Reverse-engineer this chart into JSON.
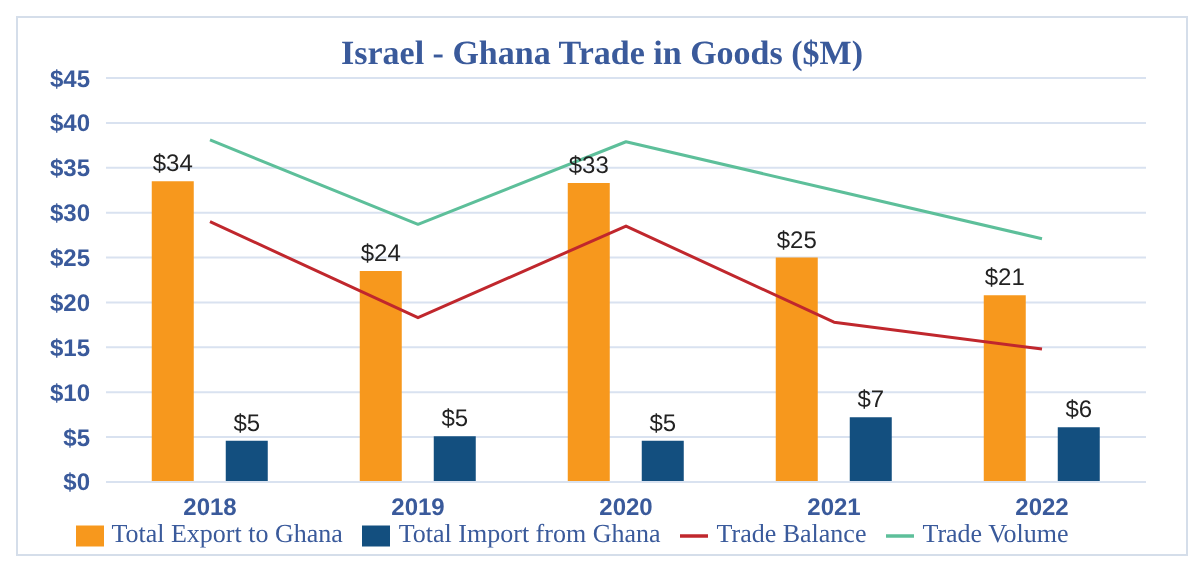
{
  "chart_data": {
    "type": "bar",
    "title": "Israel - Ghana Trade in Goods ($M)",
    "categories": [
      "2018",
      "2019",
      "2020",
      "2021",
      "2022"
    ],
    "series": [
      {
        "name": "Total Export to Ghana",
        "color": "#f7981d",
        "values": [
          33.5,
          23.5,
          33.3,
          25,
          20.8
        ],
        "value_labels": [
          "$34",
          "$24",
          "$33",
          "$25",
          "$21"
        ]
      },
      {
        "name": "Total Import from Ghana",
        "color": "#134f7f",
        "values": [
          4.6,
          5.1,
          4.6,
          7.2,
          6.1
        ],
        "value_labels": [
          "$5",
          "$5",
          "$5",
          "$7",
          "$6"
        ]
      },
      {
        "name": "Trade Balance",
        "type": "line",
        "color": "#c0272d",
        "values": [
          29,
          18.3,
          28.5,
          17.8,
          14.8
        ]
      },
      {
        "name": "Trade Volume",
        "type": "line",
        "color": "#5dbf9a",
        "values": [
          38.1,
          28.7,
          37.9,
          32.5,
          27.1
        ]
      }
    ],
    "ylim": [
      0,
      45
    ],
    "yticks": [
      {
        "value": 0,
        "label": "$0"
      },
      {
        "value": 5,
        "label": "$5"
      },
      {
        "value": 10,
        "label": "$10"
      },
      {
        "value": 15,
        "label": "$15"
      },
      {
        "value": 20,
        "label": "$20"
      },
      {
        "value": 25,
        "label": "$25"
      },
      {
        "value": 30,
        "label": "$30"
      },
      {
        "value": 35,
        "label": "$35"
      },
      {
        "value": 40,
        "label": "$40"
      },
      {
        "value": 45,
        "label": "$45"
      }
    ],
    "grid": "y",
    "legend": "bottom",
    "marker": "none",
    "line_style": "solid"
  }
}
